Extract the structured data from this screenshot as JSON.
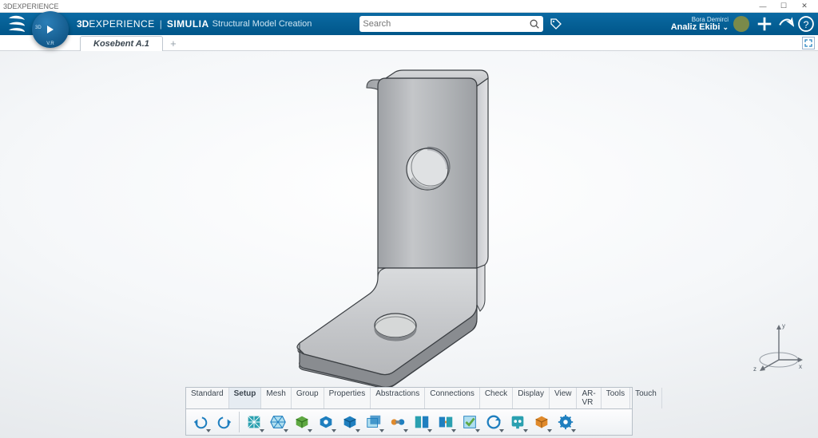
{
  "titlebar": {
    "title": "3DEXPERIENCE"
  },
  "header": {
    "brand_bold": "3D",
    "brand_exp": "EXPERIENCE",
    "brand_simulia": "SIMULIA",
    "brand_sub": "Structural Model Creation",
    "search_placeholder": "Search",
    "user_name": "Bora Demirci",
    "team": "Analiz Ekibi",
    "compass_3d": "3D",
    "compass_vr": "V.R",
    "accent": "#076399"
  },
  "tab": {
    "label": "Kosebent A.1"
  },
  "triad": {
    "x": "x",
    "y": "y",
    "z": "z"
  },
  "toolbar": {
    "tabs": [
      "Standard",
      "Setup",
      "Mesh",
      "Group",
      "Properties",
      "Abstractions",
      "Connections",
      "Check",
      "Display",
      "View",
      "AR-VR",
      "Tools",
      "Touch"
    ],
    "active_index": 1
  },
  "colors": {
    "bracket_face": "#b4b7ba",
    "bracket_light": "#d0d2d5",
    "bracket_dark": "#8f9296",
    "bracket_edge": "#3b3f43",
    "tb_icon_blue": "#1f7fbf",
    "tb_icon_green": "#5fa843",
    "tb_icon_orange": "#e08a2c",
    "tb_icon_teal": "#2aa0b0"
  }
}
